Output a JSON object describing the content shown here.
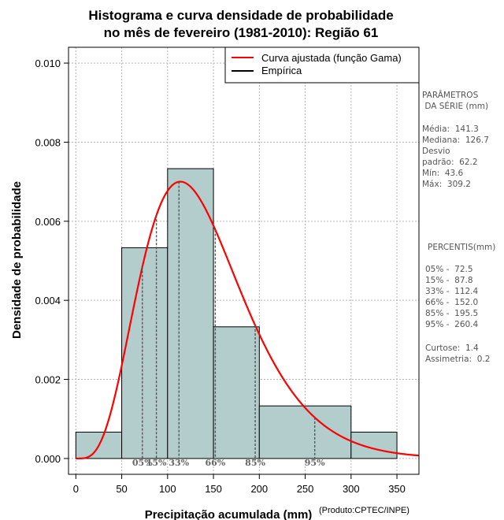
{
  "chart_data": {
    "type": "bar",
    "title_lines": [
      "Histograma e curva densidade de probabilidade",
      "no mês de fevereiro (1981-2010): Região 61"
    ],
    "xlabel": "Precipitação acumulada (mm)",
    "ylabel": "Densidade de probabilidade",
    "credit": "(Produto:CPTEC/INPE)",
    "xlim": [
      -8,
      374
    ],
    "ylim": [
      -0.0004,
      0.0104
    ],
    "x_ticks": [
      0,
      50,
      100,
      150,
      200,
      250,
      300,
      350
    ],
    "x_tick_labels": [
      "0",
      "50",
      "100",
      "150",
      "200",
      "250",
      "300",
      "350"
    ],
    "y_ticks": [
      0,
      0.002,
      0.004,
      0.006,
      0.008,
      0.01
    ],
    "y_tick_labels": [
      "0.000",
      "0.002",
      "0.004",
      "0.006",
      "0.008",
      "0.010"
    ],
    "grid": true,
    "bins": [
      {
        "start": 0,
        "end": 50,
        "density": 0.000667
      },
      {
        "start": 50,
        "end": 100,
        "density": 0.00533
      },
      {
        "start": 100,
        "end": 150,
        "density": 0.00733
      },
      {
        "start": 150,
        "end": 200,
        "density": 0.00333
      },
      {
        "start": 200,
        "end": 300,
        "density": 0.00133
      },
      {
        "start": 300,
        "end": 350,
        "density": 0.000667
      }
    ],
    "curve": {
      "type": "gamma",
      "mean": 141.3,
      "sd": 62.2,
      "color": "#ff0000"
    },
    "percentile_markers": [
      {
        "label": "05%",
        "x": 72.5
      },
      {
        "label": "15%",
        "x": 87.8
      },
      {
        "label": "33%",
        "x": 112.4
      },
      {
        "label": "66%",
        "x": 152.0
      },
      {
        "label": "85%",
        "x": 195.5
      },
      {
        "label": "95%",
        "x": 260.4
      }
    ],
    "legend": {
      "position": "top-right",
      "entries": [
        {
          "label": "Curva ajustada (função Gama)",
          "color": "#ff0000"
        },
        {
          "label": "Empírica",
          "color": "#000000"
        }
      ]
    },
    "colors": {
      "bar_fill": "#b3cdcc",
      "bar_stroke": "#000000",
      "grid": "#b3b3b3",
      "marker": "#555555"
    }
  },
  "side_panel": {
    "params_title_1": "PARÂMETROS",
    "params_title_2": " DA SÉRIE (mm)",
    "media": "Média:  141.3",
    "mediana": "Mediana:  126.7",
    "desvio_1": "Desvio",
    "desvio_2": "padrão:  62.2",
    "min": "Mín:  43.6",
    "max": "Máx:  309.2",
    "percentis_title": "PERCENTIS(mm)",
    "p05": "05% -  72.5",
    "p15": "15% -  87.8",
    "p33": "33% -  112.4",
    "p66": "66% -  152.0",
    "p85": "85% -  195.5",
    "p95": "95% -  260.4",
    "curtose": "Curtose:  1.4",
    "assimetria": "Assimetria:  0.2"
  }
}
